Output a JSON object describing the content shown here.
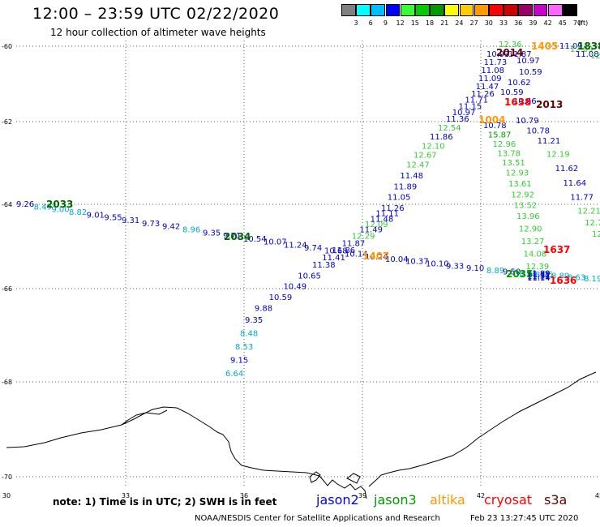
{
  "header": {
    "title": "12:00 – 23:59 UTC 02/22/2020",
    "subtitle": "12 hour collection of altimeter wave heights"
  },
  "colorbar": {
    "unit_label": "(ft)",
    "colors": [
      "#808080",
      "#00ffff",
      "#00bfff",
      "#0000ff",
      "#33ff33",
      "#00cc00",
      "#009900",
      "#ffff00",
      "#ffcc00",
      "#ff9900",
      "#ff0000",
      "#cc0000",
      "#990066",
      "#cc00cc",
      "#ff66ff",
      "#000000"
    ],
    "labels": [
      "3",
      "6",
      "9",
      "12",
      "15",
      "18",
      "21",
      "24",
      "27",
      "30",
      "33",
      "36",
      "39",
      "42",
      "45",
      "70"
    ]
  },
  "axes": {
    "lon_ticks": [
      "30",
      "33",
      "36",
      "39",
      "42",
      "45"
    ],
    "lat_ticks": [
      "-60",
      "-62",
      "-64",
      "-66",
      "-68",
      "-70"
    ]
  },
  "tracks": [
    {
      "name": "jason3 A",
      "labels": [
        {
          "t": "9.26",
          "c": "#0000cc"
        },
        {
          "t": "8.49",
          "c": "#00aacc"
        },
        {
          "t": "9.00",
          "c": "#00aacc"
        },
        {
          "t": "8.82",
          "c": "#00aacc"
        },
        {
          "t": "9.01",
          "c": "#0000cc"
        },
        {
          "t": "9.55",
          "c": "#0000cc"
        },
        {
          "t": "9.31",
          "c": "#0000cc"
        },
        {
          "t": "9.73",
          "c": "#0000cc"
        },
        {
          "t": "9.42",
          "c": "#0000cc"
        },
        {
          "t": "8.96",
          "c": "#00aacc"
        },
        {
          "t": "9.35",
          "c": "#0000cc"
        },
        {
          "t": "9.71",
          "c": "#0000cc"
        },
        {
          "t": "10.54",
          "c": "#0000cc"
        },
        {
          "t": "10.07",
          "c": "#0000cc"
        },
        {
          "t": "11.24",
          "c": "#0000cc"
        },
        {
          "t": "9.74",
          "c": "#0000cc"
        },
        {
          "t": "10.68",
          "c": "#0000cc"
        },
        {
          "t": "10.14",
          "c": "#0000cc"
        },
        {
          "t": "10.24",
          "c": "#0000cc"
        },
        {
          "t": "10.04",
          "c": "#0000cc"
        },
        {
          "t": "10.37",
          "c": "#0000cc"
        },
        {
          "t": "10.10",
          "c": "#0000cc"
        },
        {
          "t": "9.33",
          "c": "#0000cc"
        },
        {
          "t": "9.10",
          "c": "#0000cc"
        },
        {
          "t": "8.89",
          "c": "#00aacc"
        },
        {
          "t": "9.50",
          "c": "#0000cc"
        },
        {
          "t": "8.93",
          "c": "#00aacc"
        },
        {
          "t": "8.75",
          "c": "#00aacc"
        },
        {
          "t": "8.89",
          "c": "#00aacc"
        },
        {
          "t": "8.63",
          "c": "#00aacc"
        },
        {
          "t": "8.19",
          "c": "#00aacc"
        }
      ]
    },
    {
      "name": "jason2 up",
      "labels": [
        {
          "t": "6.64",
          "c": "#00aacc"
        },
        {
          "t": "9.15",
          "c": "#0000cc"
        },
        {
          "t": "8.53",
          "c": "#00aacc"
        },
        {
          "t": "8.48",
          "c": "#00aacc"
        },
        {
          "t": "9.35",
          "c": "#0000cc"
        },
        {
          "t": "9.88",
          "c": "#0000cc"
        },
        {
          "t": "10.59",
          "c": "#0000cc"
        },
        {
          "t": "10.49",
          "c": "#0000cc"
        },
        {
          "t": "10.65",
          "c": "#0000cc"
        },
        {
          "t": "11.38",
          "c": "#0000cc"
        },
        {
          "t": "11.41",
          "c": "#0000cc"
        },
        {
          "t": "11.86",
          "c": "#0000cc"
        },
        {
          "t": "11.87",
          "c": "#0000cc"
        },
        {
          "t": "12.29",
          "c": "#33cc33"
        },
        {
          "t": "11.49",
          "c": "#0000cc"
        },
        {
          "t": "12.09",
          "c": "#33cc33"
        },
        {
          "t": "11.48",
          "c": "#0000cc"
        },
        {
          "t": "11.11",
          "c": "#0000cc"
        },
        {
          "t": "11.26",
          "c": "#0000cc"
        },
        {
          "t": "11.05",
          "c": "#0000cc"
        },
        {
          "t": "11.89",
          "c": "#0000cc"
        },
        {
          "t": "11.48",
          "c": "#0000cc"
        },
        {
          "t": "12.47",
          "c": "#33cc33"
        },
        {
          "t": "12.67",
          "c": "#33cc33"
        },
        {
          "t": "12.10",
          "c": "#33cc33"
        },
        {
          "t": "11.86",
          "c": "#0000cc"
        },
        {
          "t": "12.54",
          "c": "#33cc33"
        },
        {
          "t": "11.36",
          "c": "#0000cc"
        },
        {
          "t": "10.97",
          "c": "#0000cc"
        },
        {
          "t": "11.15",
          "c": "#0000cc"
        },
        {
          "t": "11.71",
          "c": "#0000cc"
        },
        {
          "t": "11.26",
          "c": "#0000cc"
        },
        {
          "t": "11.47",
          "c": "#0000cc"
        },
        {
          "t": "11.09",
          "c": "#0000cc"
        },
        {
          "t": "11.08",
          "c": "#0000cc"
        },
        {
          "t": "11.73",
          "c": "#0000cc"
        },
        {
          "t": "10.93",
          "c": "#0000cc"
        }
      ]
    },
    {
      "name": "altika down",
      "labels": [
        {
          "t": "10.78",
          "c": "#0000cc"
        },
        {
          "t": "15.87",
          "c": "#009900"
        },
        {
          "t": "12.96",
          "c": "#33cc33"
        },
        {
          "t": "13.78",
          "c": "#33cc33"
        },
        {
          "t": "13.51",
          "c": "#33cc33"
        },
        {
          "t": "12.93",
          "c": "#33cc33"
        },
        {
          "t": "13.61",
          "c": "#33cc33"
        },
        {
          "t": "12.92",
          "c": "#33cc33"
        },
        {
          "t": "13.52",
          "c": "#33cc33"
        },
        {
          "t": "13.96",
          "c": "#33cc33"
        },
        {
          "t": "12.90",
          "c": "#33cc33"
        },
        {
          "t": "13.27",
          "c": "#33cc33"
        },
        {
          "t": "14.08",
          "c": "#33cc33"
        },
        {
          "t": "12.39",
          "c": "#33cc33"
        },
        {
          "t": "11.89",
          "c": "#0000cc"
        },
        {
          "t": "11.32",
          "c": "#0000cc"
        },
        {
          "t": "11.31",
          "c": "#0000cc"
        },
        {
          "t": "11.11",
          "c": "#0000cc"
        },
        {
          "t": "11.14",
          "c": "#0000cc"
        }
      ]
    },
    {
      "name": "cryosat down",
      "labels": [
        {
          "t": "10.79",
          "c": "#0000cc"
        },
        {
          "t": "10.78",
          "c": "#0000cc"
        },
        {
          "t": "11.21",
          "c": "#0000cc"
        },
        {
          "t": "12.19",
          "c": "#33cc33"
        },
        {
          "t": "11.62",
          "c": "#0000cc"
        },
        {
          "t": "11.64",
          "c": "#0000cc"
        },
        {
          "t": "11.77",
          "c": "#0000cc"
        },
        {
          "t": "12.21",
          "c": "#33cc33"
        },
        {
          "t": "12.73",
          "c": "#33cc33"
        },
        {
          "t": "12.86",
          "c": "#33cc33"
        }
      ]
    },
    {
      "name": "top cluster",
      "labels": [
        {
          "t": "12.36",
          "c": "#33cc33"
        },
        {
          "t": "11.87",
          "c": "#0000cc"
        },
        {
          "t": "10.97",
          "c": "#0000cc"
        },
        {
          "t": "10.59",
          "c": "#0000cc"
        },
        {
          "t": "10.62",
          "c": "#0000cc"
        },
        {
          "t": "10.59",
          "c": "#0000cc"
        },
        {
          "t": "10.66",
          "c": "#0000cc"
        },
        {
          "t": "11.09",
          "c": "#0000cc"
        },
        {
          "t": "12.09",
          "c": "#33cc33"
        },
        {
          "t": "11.08",
          "c": "#0000cc"
        },
        {
          "t": "12.79",
          "c": "#33cc33"
        },
        {
          "t": "10.96",
          "c": "#0000cc"
        }
      ]
    }
  ],
  "time_labels": [
    {
      "t": "2033",
      "c": "#006600"
    },
    {
      "t": "2034",
      "c": "#006600"
    },
    {
      "t": "1407",
      "c": "#ff9900"
    },
    {
      "t": "2014",
      "c": "#660000"
    },
    {
      "t": "1405",
      "c": "#ff9900"
    },
    {
      "t": "1838",
      "c": "#006600"
    },
    {
      "t": "1638",
      "c": "#ff0000"
    },
    {
      "t": "2013",
      "c": "#660000"
    },
    {
      "t": "1637",
      "c": "#ff0000"
    },
    {
      "t": "1636",
      "c": "#ff0000"
    },
    {
      "t": "2035",
      "c": "#009900"
    },
    {
      "t": "1004",
      "c": "#ff9900"
    }
  ],
  "footer": {
    "note": "note:  1) Time is in UTC;  2) SWH is in feet",
    "legend": [
      {
        "label": "jason2",
        "color": "#0000ff"
      },
      {
        "label": "jason3",
        "color": "#009900"
      },
      {
        "label": "altika",
        "color": "#ff9900"
      },
      {
        "label": "cryosat",
        "color": "#ff0000"
      },
      {
        "label": "s3a",
        "color": "#660000"
      }
    ],
    "credit": "NOAA/NESDIS Center for Satellite Applications and Research",
    "timestamp": "Feb 23 13:27:45 UTC 2020"
  }
}
